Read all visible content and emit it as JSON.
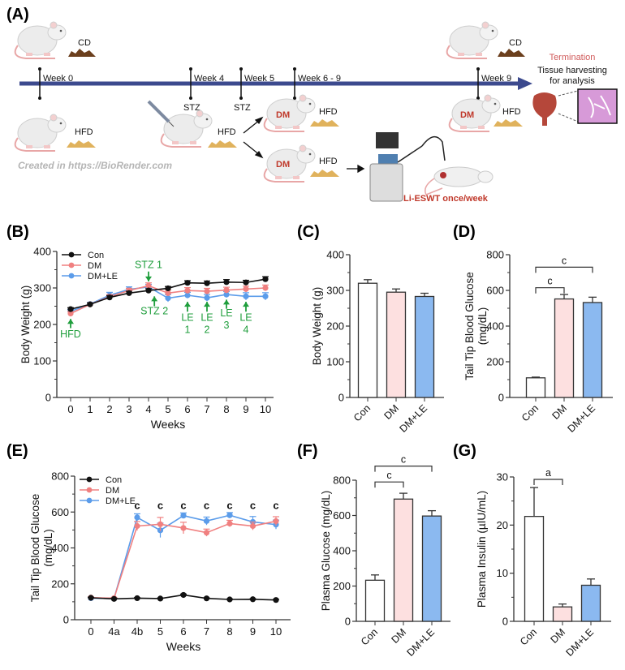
{
  "panel_labels": {
    "A": "(A)",
    "B": "(B)",
    "C": "(C)",
    "D": "(D)",
    "E": "(E)",
    "F": "(F)",
    "G": "(G)"
  },
  "colors": {
    "con": "#111111",
    "dm": "#f08080",
    "le": "#5b9cea",
    "dm_fill": "#fde0e0",
    "le_fill": "#8bb9f0",
    "annot": "#1f9e3c",
    "red_text": "#c0392b"
  },
  "schematic": {
    "weeks": [
      "Week 0",
      "Week 4",
      "Week 5",
      "Week 6 - 9",
      "Week 9"
    ],
    "stz": [
      "STZ",
      "STZ"
    ],
    "cd": "CD",
    "hfd": "HFD",
    "dm": "DM",
    "termination": "Termination",
    "tissue_line1": "Tissue harvesting",
    "tissue_line2": "for analysis",
    "li_eswt": "Li-ESWT once/week",
    "credit": "Created in  https://BioRender.com"
  },
  "chart_data": [
    {
      "id": "B",
      "type": "line",
      "xlabel": "Weeks",
      "ylabel": "Body Weight (g)",
      "ylim": [
        0,
        400
      ],
      "yticks": [
        0,
        100,
        200,
        300,
        400
      ],
      "x": [
        "0",
        "1",
        "2",
        "3",
        "4",
        "5",
        "6",
        "7",
        "8",
        "9",
        "10"
      ],
      "series": [
        {
          "name": "Con",
          "color_key": "con",
          "values": [
            242,
            255,
            274,
            286,
            293,
            299,
            314,
            313,
            316,
            315,
            324
          ],
          "err": [
            4,
            4,
            5,
            5,
            5,
            5,
            6,
            6,
            7,
            6,
            7
          ]
        },
        {
          "name": "DM",
          "color_key": "dm",
          "values": [
            230,
            255,
            276,
            293,
            306,
            286,
            293,
            291,
            294,
            297,
            300
          ],
          "err": [
            5,
            4,
            6,
            6,
            8,
            8,
            8,
            8,
            8,
            8,
            8
          ]
        },
        {
          "name": "DM+LE",
          "color_key": "le",
          "values": [
            236,
            256,
            280,
            296,
            303,
            272,
            280,
            273,
            282,
            277,
            277
          ],
          "err": [
            5,
            4,
            8,
            7,
            7,
            10,
            8,
            9,
            8,
            10,
            10
          ]
        }
      ],
      "annotations": [
        {
          "text": [
            "HFD"
          ],
          "x": 0,
          "dir": "up",
          "arrow_from": 190,
          "arrow_to": 215,
          "text_y": 165
        },
        {
          "text": [
            "STZ 1"
          ],
          "x": 4,
          "dir": "down",
          "arrow_from": 345,
          "arrow_to": 318,
          "text_y": 355
        },
        {
          "text": [
            "STZ 2"
          ],
          "x": 4.3,
          "dir": "up",
          "arrow_from": 250,
          "arrow_to": 277,
          "text_y": 228
        },
        {
          "text": [
            "LE",
            "1"
          ],
          "x": 6,
          "dir": "up",
          "arrow_from": 235,
          "arrow_to": 262,
          "text_y": 210
        },
        {
          "text": [
            "LE",
            "2"
          ],
          "x": 7,
          "dir": "up",
          "arrow_from": 235,
          "arrow_to": 262,
          "text_y": 210
        },
        {
          "text": [
            "LE",
            "3"
          ],
          "x": 8,
          "dir": "up",
          "arrow_from": 243,
          "arrow_to": 268,
          "text_y": 222
        },
        {
          "text": [
            "LE",
            "4"
          ],
          "x": 9,
          "dir": "up",
          "arrow_from": 235,
          "arrow_to": 262,
          "text_y": 210
        }
      ]
    },
    {
      "id": "C",
      "type": "bar",
      "ylabel": "Body Weight (g)",
      "ylim": [
        0,
        400
      ],
      "yticks": [
        0,
        100,
        200,
        300,
        400
      ],
      "categories": [
        "Con",
        "DM",
        "DM+LE"
      ],
      "values": [
        320,
        295,
        283
      ],
      "err": [
        10,
        9,
        9
      ],
      "comparisons": []
    },
    {
      "id": "D",
      "type": "bar",
      "ylabel": [
        "Tail Tip Blood Glucose",
        "(mg/dL)"
      ],
      "ylim": [
        0,
        800
      ],
      "yticks": [
        0,
        200,
        400,
        600,
        800
      ],
      "categories": [
        "Con",
        "DM",
        "DM+LE"
      ],
      "values": [
        110,
        552,
        532
      ],
      "err": [
        4,
        25,
        30
      ],
      "comparisons": [
        {
          "from": 0,
          "to": 1,
          "label": "c",
          "level": 615
        },
        {
          "from": 0,
          "to": 2,
          "label": "c",
          "level": 730
        }
      ]
    },
    {
      "id": "E",
      "type": "line",
      "xlabel": "Weeks",
      "ylabel": [
        "Tail Tip Blood Glucose",
        "(mg/dL)"
      ],
      "ylim": [
        0,
        800
      ],
      "yticks": [
        0,
        200,
        400,
        600,
        800
      ],
      "x": [
        "0",
        "4a",
        "4b",
        "5",
        "6",
        "7",
        "8",
        "9",
        "10"
      ],
      "series": [
        {
          "name": "Con",
          "color_key": "con",
          "values": [
            122,
            116,
            120,
            118,
            138,
            119,
            113,
            114,
            110
          ],
          "err": [
            3,
            3,
            3,
            3,
            5,
            3,
            3,
            3,
            3
          ]
        },
        {
          "name": "DM",
          "color_key": "dm",
          "values": [
            123,
            120,
            522,
            532,
            511,
            485,
            536,
            522,
            549
          ],
          "err": [
            4,
            4,
            25,
            38,
            32,
            20,
            18,
            22,
            25
          ]
        },
        {
          "name": "DM+LE",
          "color_key": "le",
          "values": [
            120,
            118,
            570,
            498,
            580,
            550,
            582,
            545,
            530
          ],
          "err": [
            3,
            3,
            20,
            40,
            15,
            22,
            15,
            30,
            25
          ]
        }
      ],
      "sig_labels": [
        {
          "x": "4b",
          "text": "c"
        },
        {
          "x": "5",
          "text": "c"
        },
        {
          "x": "6",
          "text": "c"
        },
        {
          "x": "7",
          "text": "c"
        },
        {
          "x": "8",
          "text": "c"
        },
        {
          "x": "9",
          "text": "c"
        },
        {
          "x": "10",
          "text": "c"
        }
      ]
    },
    {
      "id": "F",
      "type": "bar",
      "ylabel": "Plasma Glucose (mg/dL)",
      "ylim": [
        0,
        800
      ],
      "yticks": [
        0,
        200,
        400,
        600,
        800
      ],
      "categories": [
        "Con",
        "DM",
        "DM+LE"
      ],
      "values": [
        233,
        693,
        597
      ],
      "err": [
        30,
        33,
        30
      ],
      "comparisons": [
        {
          "from": 0,
          "to": 1,
          "label": "c",
          "level": 790
        },
        {
          "from": 0,
          "to": 2,
          "label": "c",
          "level": 880
        }
      ]
    },
    {
      "id": "G",
      "type": "bar",
      "ylabel": "Plasma Insulin (µIU/mL)",
      "ylim": [
        0,
        30
      ],
      "yticks": [
        0,
        10,
        20,
        30
      ],
      "categories": [
        "Con",
        "DM",
        "DM+LE"
      ],
      "values": [
        21.8,
        3.0,
        7.5
      ],
      "err": [
        6.0,
        0.6,
        1.3
      ],
      "comparisons": [
        {
          "from": 0,
          "to": 1,
          "label": "a",
          "level": 29.5
        }
      ]
    }
  ]
}
